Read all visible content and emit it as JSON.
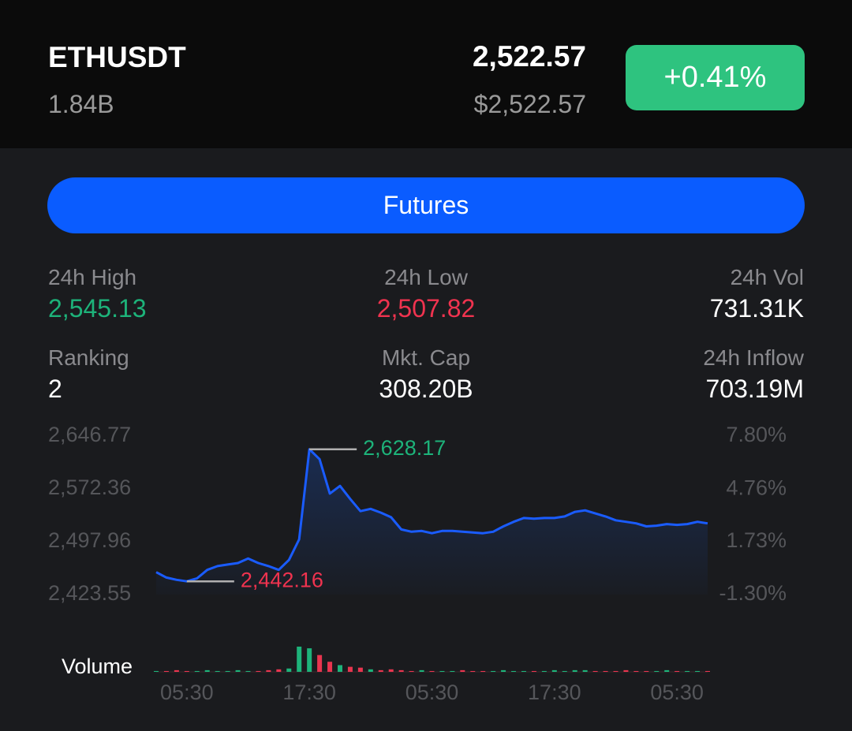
{
  "header": {
    "symbol": "ETHUSDT",
    "volume": "1.84B",
    "price": "2,522.57",
    "price_usd": "$2,522.57",
    "change": "+0.41%"
  },
  "button": {
    "label": "Futures"
  },
  "stats": [
    {
      "label": "24h High",
      "value": "2,545.13"
    },
    {
      "label": "24h Low",
      "value": "2,507.82"
    },
    {
      "label": "24h Vol",
      "value": "731.31K"
    },
    {
      "label": "Ranking",
      "value": "2"
    },
    {
      "label": "Mkt. Cap",
      "value": "308.20B"
    },
    {
      "label": "24h Inflow",
      "value": "703.19M"
    }
  ],
  "chart_data": {
    "type": "line",
    "color": "#1a5cff",
    "categories": [
      null,
      null,
      null,
      "05:30",
      null,
      null,
      null,
      null,
      null,
      null,
      null,
      null,
      null,
      null,
      null,
      "17:30",
      null,
      null,
      null,
      null,
      null,
      null,
      null,
      null,
      null,
      null,
      null,
      "05:30",
      null,
      null,
      null,
      null,
      null,
      null,
      null,
      null,
      null,
      null,
      null,
      "17:30",
      null,
      null,
      null,
      null,
      null,
      null,
      null,
      null,
      null,
      null,
      null,
      "05:30",
      null,
      null,
      null
    ],
    "values": [
      2455.06,
      2447.54,
      2444.31,
      2442.16,
      2446.46,
      2458.29,
      2463.66,
      2465.81,
      2467.96,
      2474.42,
      2467.96,
      2463.66,
      2458.29,
      2472.26,
      2501.3,
      2628.17,
      2614.19,
      2565.81,
      2576.56,
      2558.28,
      2541.08,
      2544.3,
      2538.93,
      2532.48,
      2515.27,
      2512.05,
      2513.12,
      2509.9,
      2513.12,
      2513.12,
      2512.05,
      2510.97,
      2509.9,
      2512.05,
      2519.57,
      2526.03,
      2531.4,
      2530.33,
      2531.4,
      2531.4,
      2533.55,
      2540.0,
      2542.15,
      2537.85,
      2533.55,
      2528.18,
      2526.03,
      2523.88,
      2519.57,
      2520.65,
      2522.8,
      2521.73,
      2522.8,
      2526.03,
      2523.88
    ],
    "ylim": [
      2423.55,
      2646.77
    ],
    "yticks": [
      {
        "value": 2646.77,
        "label": "2,646.77"
      },
      {
        "value": 2572.36,
        "label": "2,572.36"
      },
      {
        "value": 2497.96,
        "label": "2,497.96"
      },
      {
        "value": 2423.55,
        "label": "2,423.55"
      }
    ],
    "y2lim": [
      -1.3,
      7.8
    ],
    "y2ticks": [
      {
        "value": 7.8,
        "label": "7.80%"
      },
      {
        "value": 4.76,
        "label": "4.76%"
      },
      {
        "value": 1.73,
        "label": "1.73%"
      },
      {
        "value": -1.3,
        "label": "-1.30%"
      }
    ],
    "annotations": {
      "high": "2,628.17",
      "low": "2,442.16"
    },
    "volume": {
      "label": "Volume",
      "up_color": "#1db37a",
      "down_color": "#e8354f",
      "values": [
        1,
        1,
        2,
        1,
        1,
        2,
        1,
        1,
        2,
        1,
        1,
        2,
        3,
        4,
        30,
        28,
        20,
        12,
        8,
        6,
        5,
        3,
        2,
        3,
        2,
        1,
        2,
        1,
        1,
        1,
        2,
        1,
        1,
        1,
        2,
        1,
        1,
        1,
        1,
        2,
        1,
        2,
        2,
        1,
        1,
        1,
        2,
        1,
        1,
        1,
        2,
        1,
        1,
        1,
        1
      ]
    }
  }
}
